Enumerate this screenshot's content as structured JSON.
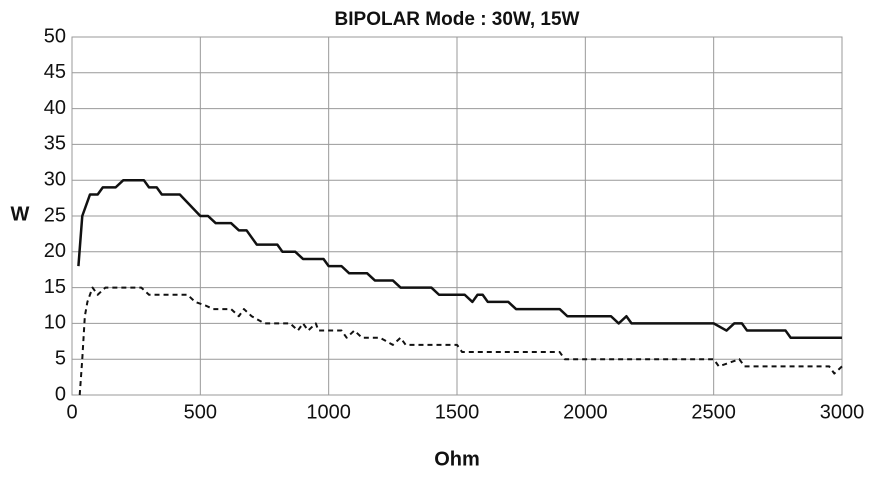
{
  "chart_data": {
    "type": "line",
    "title": "BIPOLAR Mode : 30W, 15W",
    "xlabel": "Ohm",
    "ylabel": "W",
    "xlim": [
      0,
      3000
    ],
    "ylim": [
      0,
      50
    ],
    "xticks": [
      0,
      500,
      1000,
      1500,
      2000,
      2500,
      3000
    ],
    "yticks": [
      0,
      5,
      10,
      15,
      20,
      25,
      30,
      35,
      40,
      45,
      50
    ],
    "grid": true,
    "series": [
      {
        "color": "#111111",
        "line_style": "solid",
        "x": [
          25,
          40,
          70,
          100,
          120,
          170,
          200,
          280,
          300,
          330,
          350,
          420,
          500,
          530,
          560,
          620,
          650,
          680,
          720,
          800,
          820,
          870,
          900,
          980,
          1000,
          1050,
          1080,
          1150,
          1180,
          1250,
          1280,
          1400,
          1430,
          1530,
          1560,
          1580,
          1600,
          1620,
          1700,
          1730,
          1900,
          1930,
          2100,
          2130,
          2160,
          2180,
          2500,
          2550,
          2580,
          2610,
          2630,
          2780,
          2800,
          3000
        ],
        "values": [
          18,
          25,
          28,
          28,
          29,
          29,
          30,
          30,
          29,
          29,
          28,
          28,
          25,
          25,
          24,
          24,
          23,
          23,
          21,
          21,
          20,
          20,
          19,
          19,
          18,
          18,
          17,
          17,
          16,
          16,
          15,
          15,
          14,
          14,
          13,
          14,
          14,
          13,
          13,
          12,
          12,
          11,
          11,
          10,
          11,
          10,
          10,
          9,
          10,
          10,
          9,
          9,
          8,
          8
        ]
      },
      {
        "color": "#111111",
        "line_style": "dashed",
        "x": [
          30,
          40,
          50,
          60,
          80,
          100,
          130,
          270,
          300,
          450,
          480,
          520,
          550,
          620,
          650,
          670,
          700,
          750,
          850,
          880,
          900,
          920,
          950,
          960,
          1050,
          1070,
          1100,
          1130,
          1200,
          1250,
          1280,
          1300,
          1500,
          1520,
          1900,
          1920,
          2500,
          2520,
          2600,
          2620,
          2950,
          2970,
          3000
        ],
        "values": [
          0,
          5,
          11,
          13,
          15,
          14,
          15,
          15,
          14,
          14,
          13,
          12.5,
          12,
          12,
          11,
          12,
          11,
          10,
          10,
          9,
          10,
          9,
          10,
          9,
          9,
          8,
          9,
          8,
          8,
          7,
          8,
          7,
          7,
          6,
          6,
          5,
          5,
          4,
          5,
          4,
          4,
          3,
          4
        ]
      }
    ]
  }
}
